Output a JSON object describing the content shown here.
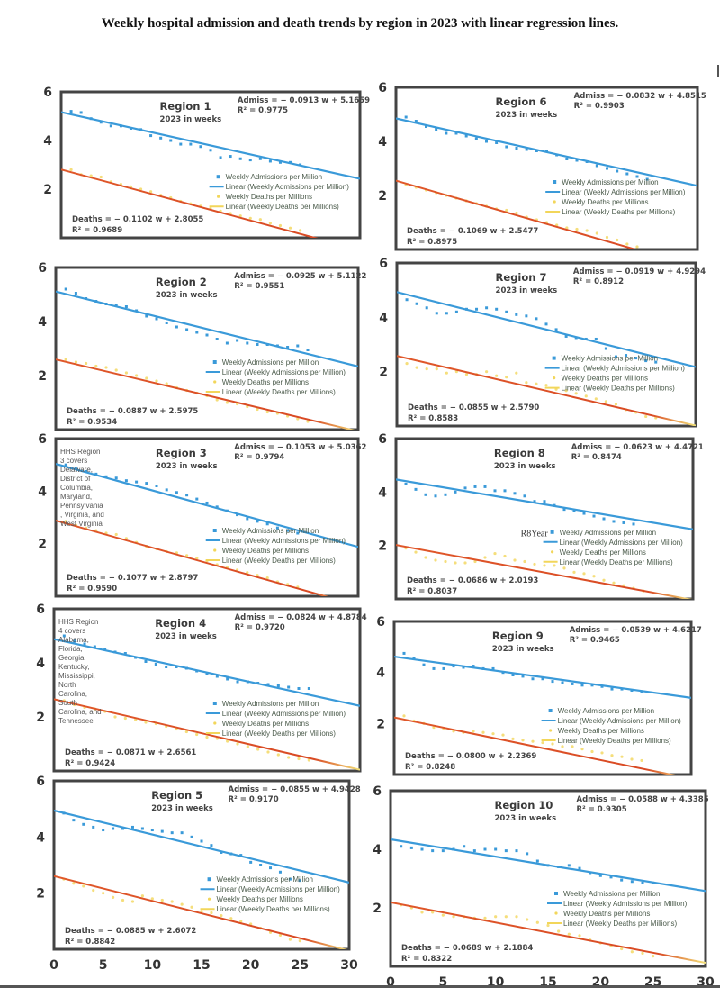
{
  "title": "Weekly hospital admission and death trends by region in 2023 with linear regression lines.",
  "chart_data": {
    "type": "scatter",
    "title": "Weekly hospital admission and death trends by region in 2023 with linear regression lines.",
    "xlabel": "",
    "ylabel": "",
    "xlim": [
      0,
      30
    ],
    "ylim": [
      0,
      6
    ],
    "x_ticks": [
      "0",
      "5",
      "10",
      "15",
      "20",
      "25",
      "30"
    ],
    "y_ticks": [
      "2",
      "4",
      "6"
    ],
    "subtitle": "2023 in weeks",
    "legend": [
      "Weekly Admissions per Million",
      "Linear (Weekly Admissions per Million)",
      "Weekly Deaths per Millions",
      "Linear (Weekly Deaths per Millions)"
    ],
    "colors": {
      "admissions": "#3a9ad9",
      "admissions_trend": "#3a9ad9",
      "deaths": "#f2d65a",
      "deaths_trend": "#d9532a",
      "frame": "#444444"
    },
    "regions": [
      {
        "name": "Region 1",
        "admiss_eq": "Admiss = − 0.0913 w + 5.1659",
        "admiss_r2": "R² = 0.9775",
        "admiss_slope": -0.0913,
        "admiss_intercept": 5.1659,
        "deaths_eq": "Deaths = − 0.1102 w + 2.8055",
        "deaths_r2": "R² = 0.9689",
        "deaths_slope": -0.1102,
        "deaths_intercept": 2.8055,
        "note": [],
        "admissions": [
          5.2,
          5.15,
          4.9,
          4.75,
          4.6,
          4.6,
          4.5,
          4.45,
          4.2,
          4.1,
          4.0,
          3.85,
          3.85,
          3.75,
          3.6,
          3.3,
          3.35,
          3.25,
          3.2,
          3.25,
          3.15,
          3.1,
          3.1,
          3.0
        ],
        "deaths": [
          2.8,
          2.6,
          2.55,
          2.5,
          2.3,
          2.2,
          2.1,
          2.0,
          1.9,
          1.75,
          1.65,
          1.5,
          1.4,
          1.3,
          1.2,
          1.1,
          1.0,
          0.9,
          0.8,
          0.75,
          0.6,
          0.5,
          0.4,
          0.3
        ]
      },
      {
        "name": "Region 2",
        "admiss_eq": "Admiss = − 0.0925 w + 5.1122",
        "admiss_r2": "R² = 0.9551",
        "admiss_slope": -0.0925,
        "admiss_intercept": 5.1122,
        "deaths_eq": "Deaths = − 0.0887 w + 2.5975",
        "deaths_r2": "R² = 0.9534",
        "deaths_slope": -0.0887,
        "deaths_intercept": 2.5975,
        "note": [],
        "admissions": [
          5.2,
          5.05,
          4.85,
          4.75,
          4.65,
          4.6,
          4.55,
          4.4,
          4.2,
          4.1,
          3.95,
          3.8,
          3.7,
          3.6,
          3.5,
          3.35,
          3.2,
          3.3,
          3.2,
          3.15,
          3.15,
          3.1,
          3.05,
          3.1,
          2.95
        ],
        "deaths": [
          2.6,
          2.5,
          2.45,
          2.35,
          2.3,
          2.2,
          2.1,
          2.0,
          1.9,
          1.8,
          1.7,
          1.55,
          1.45,
          1.35,
          1.25,
          1.1,
          1.0,
          0.95,
          0.85,
          0.75,
          0.65,
          0.6,
          0.5,
          0.4,
          0.3
        ]
      },
      {
        "name": "Region 3",
        "admiss_eq": "Admiss = − 0.1053 w + 5.0362",
        "admiss_r2": "R² = 0.9794",
        "admiss_slope": -0.1053,
        "admiss_intercept": 5.0362,
        "deaths_eq": "Deaths = − 0.1077 w + 2.8797",
        "deaths_r2": "R² = 0.9590",
        "deaths_slope": -0.1077,
        "deaths_intercept": 2.8797,
        "note": [
          "HHS Region",
          "3 covers",
          "Delaware,",
          "District of",
          "Columbia,",
          "Maryland,",
          "Pennsylvania",
          ", Virginia, and",
          "West Virginia"
        ],
        "admissions": [
          5.0,
          4.85,
          4.75,
          4.65,
          4.55,
          4.5,
          4.4,
          4.35,
          4.3,
          4.2,
          4.05,
          3.95,
          3.85,
          3.7,
          3.55,
          3.4,
          3.25,
          3.1,
          2.95,
          2.85,
          2.75,
          2.6,
          2.5,
          2.4
        ],
        "deaths": [
          2.85,
          2.7,
          2.6,
          2.5,
          2.4,
          2.35,
          2.2,
          2.05,
          1.9,
          1.8,
          1.7,
          1.65,
          1.55,
          1.45,
          1.35,
          1.2,
          1.1,
          1.0,
          0.9,
          0.8,
          0.7,
          0.55,
          0.45,
          0.35
        ]
      },
      {
        "name": "Region 4",
        "admiss_eq": "Admiss = − 0.0824 w + 4.8784",
        "admiss_r2": "R² = 0.9720",
        "admiss_slope": -0.0824,
        "admiss_intercept": 4.8784,
        "deaths_eq": "Deaths = − 0.0871 w + 2.6561",
        "deaths_r2": "R² = 0.9424",
        "deaths_slope": -0.0871,
        "deaths_intercept": 2.6561,
        "note": [
          "HHS Region",
          "4 covers",
          "Alabama,",
          "Florida,",
          "Georgia,",
          "Kentucky,",
          "Mississippi,",
          "North",
          "Carolina,",
          "South",
          "Carolina, and",
          "Tennessee"
        ],
        "admissions": [
          5.0,
          4.8,
          4.7,
          4.6,
          4.5,
          4.4,
          4.35,
          4.2,
          4.05,
          3.95,
          3.85,
          3.85,
          3.8,
          3.7,
          3.6,
          3.5,
          3.4,
          3.3,
          3.3,
          3.25,
          3.2,
          3.15,
          3.1,
          3.05,
          3.05
        ],
        "deaths": [
          2.6,
          2.45,
          2.35,
          2.3,
          2.2,
          2.0,
          1.95,
          1.9,
          1.8,
          1.75,
          1.65,
          1.55,
          1.45,
          1.35,
          1.25,
          1.2,
          1.1,
          1.0,
          0.9,
          0.8,
          0.7,
          0.6,
          0.5,
          0.45,
          0.4
        ]
      },
      {
        "name": "Region 5",
        "admiss_eq": "Admiss = − 0.0855 w + 4.9428",
        "admiss_r2": "R² = 0.9170",
        "admiss_slope": -0.0855,
        "admiss_intercept": 4.9428,
        "deaths_eq": "Deaths = − 0.0885 w + 2.6072",
        "deaths_r2": "R² = 0.8842",
        "deaths_slope": -0.0885,
        "deaths_intercept": 2.6072,
        "note": [],
        "admissions": [
          4.85,
          4.6,
          4.45,
          4.35,
          4.25,
          4.3,
          4.3,
          4.35,
          4.3,
          4.25,
          4.2,
          4.15,
          4.15,
          4.0,
          3.85,
          3.7,
          3.45,
          3.4,
          3.35,
          3.1,
          3.0,
          2.9,
          2.75,
          2.5,
          2.45
        ],
        "deaths": [
          2.5,
          2.35,
          2.25,
          2.1,
          2.0,
          1.85,
          1.75,
          1.7,
          1.9,
          1.8,
          1.75,
          1.7,
          1.6,
          1.5,
          1.35,
          1.3,
          1.2,
          1.1,
          1.0,
          0.9,
          0.75,
          0.6,
          0.5,
          0.35,
          0.3
        ]
      },
      {
        "name": "Region 6",
        "admiss_eq": "Admiss = − 0.0832 w + 4.8515",
        "admiss_r2": "R² = 0.9903",
        "admiss_slope": -0.0832,
        "admiss_intercept": 4.8515,
        "deaths_eq": "Deaths = − 0.1069 w + 2.5477",
        "deaths_r2": "R² = 0.8975",
        "deaths_slope": -0.1069,
        "deaths_intercept": 2.5477,
        "note": [],
        "admissions": [
          4.9,
          4.75,
          4.55,
          4.45,
          4.3,
          4.3,
          4.2,
          4.1,
          4.0,
          3.95,
          3.8,
          3.75,
          3.7,
          3.65,
          3.65,
          3.5,
          3.35,
          3.3,
          3.25,
          3.1,
          3.0,
          2.9,
          2.8,
          2.7,
          2.6
        ],
        "deaths": [
          2.4,
          2.3,
          2.2,
          2.1,
          2.0,
          1.9,
          1.8,
          1.7,
          1.6,
          1.5,
          1.45,
          1.35,
          1.2,
          1.1,
          1.0,
          0.9,
          0.8,
          0.75,
          0.7,
          0.6,
          0.45,
          0.35,
          0.2,
          0.1
        ]
      },
      {
        "name": "Region 7",
        "admiss_eq": "Admiss = − 0.0919 w + 4.9294",
        "admiss_r2": "R² = 0.8912",
        "admiss_slope": -0.0919,
        "admiss_intercept": 4.9294,
        "deaths_eq": "Deaths = − 0.0855 w + 2.5790",
        "deaths_r2": "R² = 0.8583",
        "deaths_slope": -0.0855,
        "deaths_intercept": 2.579,
        "note": [],
        "admissions": [
          4.65,
          4.5,
          4.35,
          4.15,
          4.15,
          4.2,
          4.3,
          4.3,
          4.35,
          4.3,
          4.2,
          4.1,
          4.05,
          3.95,
          3.75,
          3.55,
          3.3,
          3.25,
          3.2,
          3.2,
          2.85,
          2.55,
          2.6,
          2.5,
          2.4,
          2.35
        ],
        "deaths": [
          2.3,
          2.15,
          2.1,
          2.1,
          1.95,
          2.0,
          1.9,
          1.9,
          2.0,
          1.85,
          1.8,
          1.95,
          1.6,
          1.55,
          1.5,
          1.35,
          1.3,
          1.2,
          1.1,
          1.0,
          0.9,
          0.8,
          0.6,
          0.5,
          0.35,
          0.3
        ]
      },
      {
        "name": "Region 8",
        "admiss_eq": "Admiss = − 0.0623 w + 4.4721",
        "admiss_r2": "R² = 0.8474",
        "admiss_slope": -0.0623,
        "admiss_intercept": 4.4721,
        "deaths_eq": "Deaths = − 0.0686 w + 2.0193",
        "deaths_r2": "R² = 0.8037",
        "deaths_slope": -0.0686,
        "deaths_intercept": 2.0193,
        "note": [],
        "annotation": "R8Year",
        "admissions": [
          4.3,
          4.1,
          3.9,
          3.85,
          3.9,
          4.0,
          4.15,
          4.2,
          4.2,
          4.05,
          4.05,
          3.95,
          3.85,
          3.65,
          3.65,
          3.5,
          3.35,
          3.3,
          3.2,
          3.1,
          3.0,
          2.9,
          2.85,
          2.8
        ],
        "deaths": [
          1.9,
          1.75,
          1.55,
          1.45,
          1.4,
          1.35,
          1.35,
          1.4,
          1.55,
          1.7,
          1.6,
          1.45,
          1.4,
          1.3,
          1.25,
          1.25,
          1.15,
          1.0,
          0.95,
          0.85,
          0.7,
          0.6,
          0.5,
          0.4,
          0.3
        ]
      },
      {
        "name": "Region 9",
        "admiss_eq": "Admiss = − 0.0539 w + 4.6217",
        "admiss_r2": "R² = 0.9465",
        "admiss_slope": -0.0539,
        "admiss_intercept": 4.6217,
        "deaths_eq": "Deaths = − 0.0800 w + 2.2369",
        "deaths_r2": "R² = 0.8248",
        "deaths_slope": -0.08,
        "deaths_intercept": 2.2369,
        "note": [],
        "admissions": [
          4.75,
          4.55,
          4.3,
          4.15,
          4.15,
          4.25,
          4.2,
          4.25,
          4.15,
          4.15,
          4.0,
          3.9,
          3.85,
          3.75,
          3.75,
          3.65,
          3.6,
          3.55,
          3.5,
          3.5,
          3.45,
          3.35,
          3.35,
          3.3,
          3.25
        ],
        "deaths": [
          2.3,
          2.1,
          2.0,
          1.85,
          1.8,
          1.7,
          1.65,
          1.7,
          1.65,
          1.6,
          1.55,
          1.4,
          1.35,
          1.3,
          1.25,
          1.2,
          1.1,
          1.1,
          1.0,
          0.9,
          0.85,
          0.75,
          0.7,
          0.6,
          0.55
        ]
      },
      {
        "name": "Region 10",
        "admiss_eq": "Admiss = − 0.0588 w + 4.3385",
        "admiss_r2": "R² = 0.9305",
        "admiss_slope": -0.0588,
        "admiss_intercept": 4.3385,
        "deaths_eq": "Deaths = − 0.0689 w + 2.1884",
        "deaths_r2": "R² = 0.8322",
        "deaths_slope": -0.0689,
        "deaths_intercept": 2.1884,
        "note": [],
        "admissions": [
          4.1,
          4.05,
          4.0,
          3.95,
          3.95,
          4.0,
          4.1,
          3.95,
          4.0,
          4.0,
          3.95,
          3.95,
          3.85,
          3.6,
          3.45,
          3.4,
          3.45,
          3.35,
          3.2,
          3.1,
          3.05,
          2.95,
          2.9,
          2.85,
          2.85
        ],
        "deaths": [
          2.1,
          2.0,
          1.85,
          1.85,
          1.75,
          1.7,
          1.7,
          1.65,
          1.65,
          1.7,
          1.7,
          1.7,
          1.6,
          1.5,
          1.4,
          1.2,
          1.1,
          1.05,
          0.9,
          0.8,
          0.7,
          0.6,
          0.5,
          0.45,
          0.35
        ]
      }
    ]
  }
}
